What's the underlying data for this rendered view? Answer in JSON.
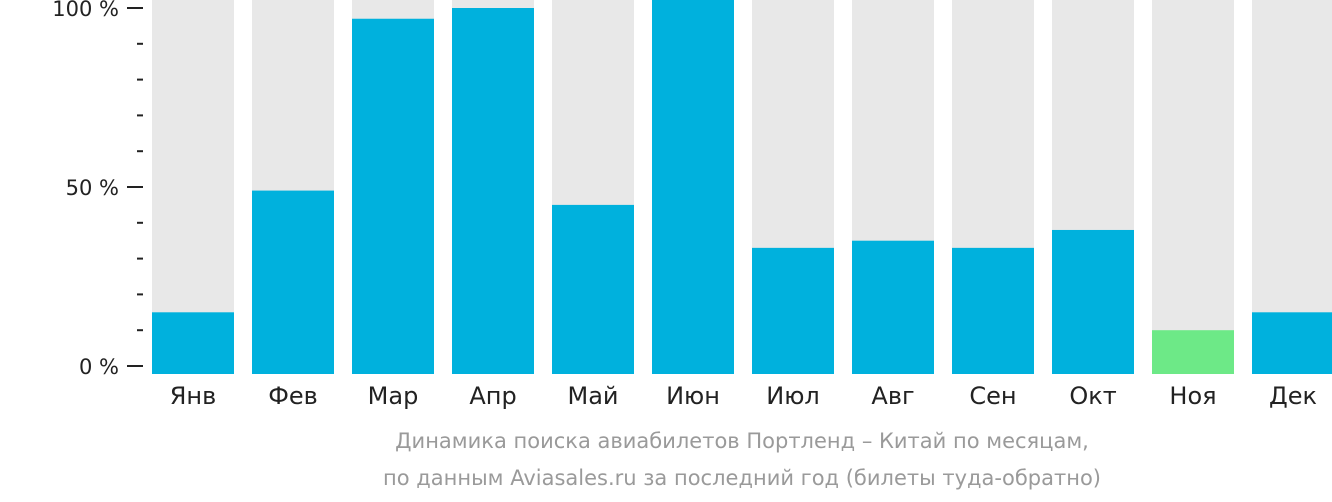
{
  "chart_data": {
    "type": "bar",
    "categories": [
      "Янв",
      "Фев",
      "Мар",
      "Апр",
      "Май",
      "Июн",
      "Июл",
      "Авг",
      "Сен",
      "Окт",
      "Ноя",
      "Дек"
    ],
    "values": [
      15,
      49,
      97,
      100,
      45,
      104,
      33,
      35,
      33,
      38,
      10,
      15
    ],
    "ylim": [
      0,
      100
    ],
    "yticks": [
      {
        "value": 100,
        "label": "100 %"
      },
      {
        "value": 50,
        "label": "50 %"
      },
      {
        "value": 0,
        "label": "0 %"
      }
    ],
    "minor_tick_step": 10,
    "highlight_index": 10,
    "grid": false,
    "legend": "none"
  },
  "colors": {
    "bar": "#00b1dd",
    "bar_highlight": "#6de987",
    "bar_background": "#e8e8e8",
    "axis": "#222222",
    "caption": "#9a9a9a"
  },
  "caption": {
    "line1": "Динамика поиска авиабилетов Портленд – Китай по месяцам,",
    "line2": "по данным Aviasales.ru за последний год (билеты туда-обратно)"
  }
}
